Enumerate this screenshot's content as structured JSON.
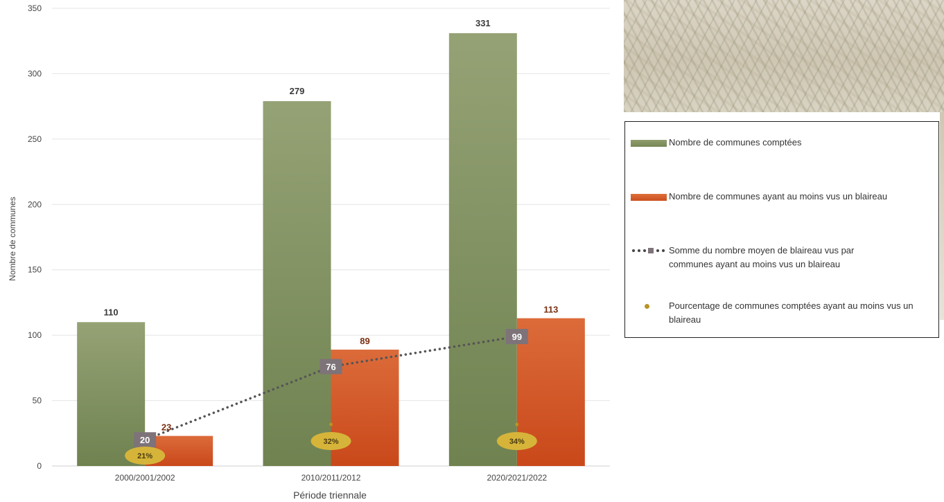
{
  "chart_data": {
    "type": "bar",
    "title": "",
    "xlabel": "Période triennale",
    "ylabel": "Nombre de communes",
    "ylim": [
      0,
      350
    ],
    "yticks": [
      0,
      50,
      100,
      150,
      200,
      250,
      300,
      350
    ],
    "grid": true,
    "legend_position": "right",
    "categories": [
      "2000/2001/2002",
      "2010/2011/2012",
      "2020/2021/2022"
    ],
    "series": [
      {
        "name": "Nombre de communes comptées",
        "kind": "bar",
        "color": "#849562",
        "values": [
          110,
          279,
          331
        ],
        "labels": [
          "110",
          "279",
          "331"
        ]
      },
      {
        "name": "Nombre de communes ayant au moins vus un blaireau",
        "kind": "bar",
        "color": "#d65e28",
        "values": [
          23,
          89,
          113
        ],
        "labels": [
          "23",
          "89",
          "113"
        ]
      },
      {
        "name": "Somme du nombre moyen de blaireau vus par communes ayant au moins vus un blaireau",
        "kind": "line-dotted",
        "color": "#555555",
        "values": [
          20,
          76,
          99
        ],
        "labels": [
          "20",
          "76",
          "99"
        ]
      },
      {
        "name": "Pourcentage de communes comptées ayant au moins vus un blaireau",
        "kind": "marker",
        "color": "#d8b131",
        "values": [
          21,
          32,
          34
        ],
        "labels": [
          "21%",
          "32%",
          "34%"
        ]
      }
    ]
  },
  "legend": {
    "items": [
      {
        "text": "Nombre de communes comptées"
      },
      {
        "text": "Nombre de communes ayant au moins vus un blaireau"
      },
      {
        "text": "Somme du nombre moyen de blaireau vus par communes ayant au moins vus un blaireau"
      },
      {
        "text": "Pourcentage de communes comptées ayant au moins vus un blaireau"
      }
    ]
  }
}
